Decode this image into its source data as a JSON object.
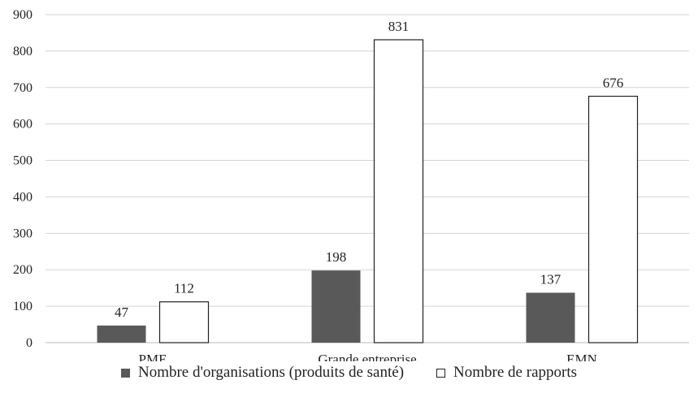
{
  "chart_data": {
    "type": "bar",
    "categories": [
      "PME",
      "Grande entreprise",
      "EMN"
    ],
    "series": [
      {
        "name": "Nombre d'organisations (produits de santé)",
        "values": [
          47,
          198,
          137
        ],
        "color": "#595959"
      },
      {
        "name": "Nombre de rapports",
        "values": [
          112,
          831,
          676
        ],
        "color": "#ffffff"
      }
    ],
    "ylim": [
      0,
      900
    ],
    "yticks": [
      0,
      100,
      200,
      300,
      400,
      500,
      600,
      700,
      800,
      900
    ],
    "grid": true,
    "legend_position": "bottom",
    "title": "",
    "xlabel": "",
    "ylabel": ""
  }
}
